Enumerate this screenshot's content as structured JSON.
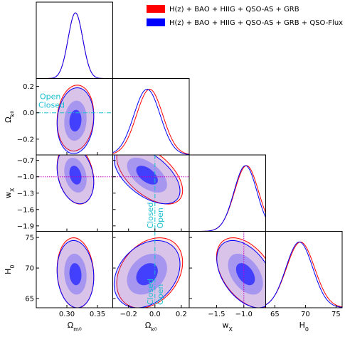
{
  "chart_data": {
    "type": "corner",
    "parameters": [
      {
        "key": "om",
        "label": "Ω_m0",
        "range": [
          0.25,
          0.375
        ],
        "ticks": [
          0.3,
          0.35
        ],
        "tick_labels": [
          "0.30",
          "0.35"
        ]
      },
      {
        "key": "ok",
        "label": "Ω_k0",
        "range": [
          -0.32,
          0.26
        ],
        "ticks": [
          -0.2,
          0.0,
          0.2
        ],
        "tick_labels": [
          "−0.2",
          "0.0",
          "0.2"
        ]
      },
      {
        "key": "wx",
        "label": "w_X",
        "range": [
          -2.0,
          -0.6
        ],
        "ticks": [
          -0.7,
          -1.0,
          -1.3,
          -1.6,
          -1.9
        ],
        "tick_labels": [
          "−0.7",
          "−1.0",
          "−1.3",
          "−1.6",
          "−1.9"
        ],
        "x_ticks": [
          -1.5,
          -1.0
        ],
        "x_tick_labels": [
          "−1.5",
          "−1.0"
        ]
      },
      {
        "key": "h0",
        "label": "H_0",
        "range": [
          63.5,
          76.0
        ],
        "ticks": [
          65,
          70,
          75
        ],
        "tick_labels": [
          "65",
          "70",
          "75"
        ]
      }
    ],
    "series": [
      {
        "name": "H(z) + BAO + HIIG + QSO-AS + GRB",
        "color": "#ff0000",
        "means": {
          "om": 0.314,
          "ok": -0.04,
          "wx": -0.95,
          "h0": 69.2
        },
        "sigmas": {
          "om": 0.012,
          "ok": 0.1,
          "wx": 0.22,
          "h0": 2.3
        },
        "correlations": {
          "om_ok": 0.1,
          "om_wx": -0.25,
          "ok_wx": -0.55,
          "om_h0": -0.1,
          "ok_h0": 0.3,
          "wx_h0": -0.45
        }
      },
      {
        "name": "H(z) + BAO + HIIG + QSO-AS + GRB + QSO-Flux",
        "color": "#0000ff",
        "means": {
          "om": 0.314,
          "ok": -0.06,
          "wx": -0.97,
          "h0": 69.0
        },
        "sigmas": {
          "om": 0.012,
          "ok": 0.1,
          "wx": 0.21,
          "h0": 2.2
        },
        "correlations": {
          "om_ok": 0.1,
          "om_wx": -0.25,
          "ok_wx": -0.55,
          "om_h0": -0.1,
          "ok_h0": 0.3,
          "wx_h0": -0.45
        }
      }
    ],
    "reference_lines": {
      "ok": 0.0,
      "wx": -1.0
    },
    "annotations": {
      "open": "Open",
      "closed": "Closed"
    },
    "legend_position": "top-right",
    "grid": false
  }
}
